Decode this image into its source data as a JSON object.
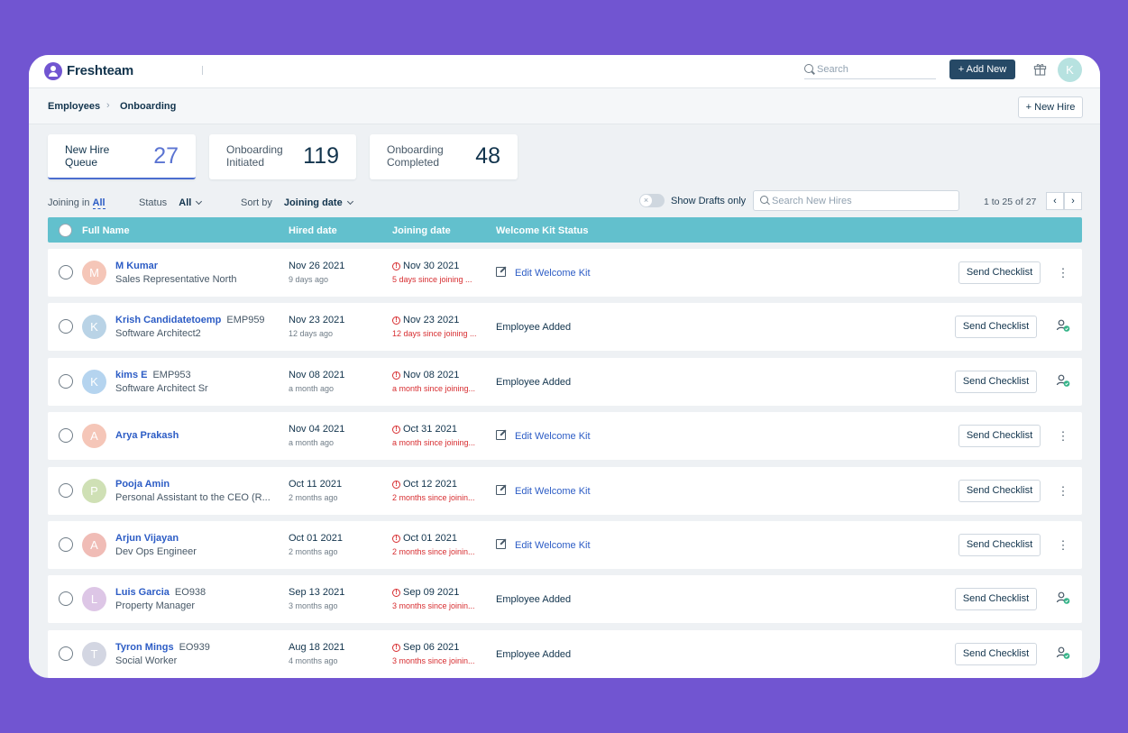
{
  "app": {
    "name": "Freshteam"
  },
  "topbar": {
    "search_placeholder": "Search",
    "add_new_label": "+ Add New",
    "avatar_initial": "K"
  },
  "breadcrumb": {
    "items": [
      "Employees",
      "Onboarding"
    ],
    "separator": "›"
  },
  "new_hire_button": "+ New Hire",
  "stats": [
    {
      "label": "New Hire Queue",
      "value": "27",
      "active": true
    },
    {
      "label": "Onboarding Initiated",
      "value": "119",
      "active": false
    },
    {
      "label": "Onboarding Completed",
      "value": "48",
      "active": false
    }
  ],
  "filters": {
    "joining_in_label": "Joining in",
    "joining_in_value": "All",
    "status_label": "Status",
    "status_value": "All",
    "sort_label": "Sort by",
    "sort_value": "Joining date",
    "drafts_label": "Show Drafts only",
    "drafts_enabled": false,
    "search_placeholder": "Search New Hires",
    "pager_text": "1 to 25 of 27",
    "prev_label": "‹",
    "next_label": "›"
  },
  "table": {
    "headers": [
      "Full Name",
      "Hired date",
      "Joining date",
      "Welcome Kit Status"
    ],
    "send_checklist_label": "Send Checklist",
    "edit_kit_label": "Edit Welcome Kit",
    "rows": [
      {
        "initial": "M",
        "avatar_color": "#f5c6b8",
        "name": "M Kumar",
        "emp_id": "",
        "role": "Sales Representative North",
        "hired": "Nov 26 2021",
        "hired_ago": "9 days ago",
        "joining": "Nov 30 2021",
        "joining_since": "5 days since joining ...",
        "kit": "edit",
        "kit_status": "",
        "action": "dots"
      },
      {
        "initial": "K",
        "avatar_color": "#b9d3e6",
        "name": "Krish Candidatetoemp",
        "emp_id": "EMP959",
        "role": "Software Architect2",
        "hired": "Nov 23 2021",
        "hired_ago": "12 days ago",
        "joining": "Nov 23 2021",
        "joining_since": "12 days since joining ...",
        "kit": "status",
        "kit_status": "Employee Added",
        "action": "person-check"
      },
      {
        "initial": "K",
        "avatar_color": "#b5d4ef",
        "name": "kims E",
        "emp_id": "EMP953",
        "role": "Software Architect Sr",
        "hired": "Nov 08 2021",
        "hired_ago": "a month ago",
        "joining": "Nov 08 2021",
        "joining_since": "a month since joining...",
        "kit": "status",
        "kit_status": "Employee Added",
        "action": "person-check"
      },
      {
        "initial": "A",
        "avatar_color": "#f5c6b8",
        "name": "Arya Prakash",
        "emp_id": "",
        "role": "",
        "hired": "Nov 04 2021",
        "hired_ago": "a month ago",
        "joining": "Oct 31 2021",
        "joining_since": "a month since joining...",
        "kit": "edit",
        "kit_status": "",
        "action": "dots"
      },
      {
        "initial": "P",
        "avatar_color": "#cfe0b5",
        "name": "Pooja Amin",
        "emp_id": "",
        "role": "Personal Assistant to the CEO (R...",
        "hired": "Oct 11 2021",
        "hired_ago": "2 months ago",
        "joining": "Oct 12 2021",
        "joining_since": "2 months since joinin...",
        "kit": "edit",
        "kit_status": "",
        "action": "dots"
      },
      {
        "initial": "A",
        "avatar_color": "#f0bcb6",
        "name": "Arjun Vijayan",
        "emp_id": "",
        "role": "Dev Ops Engineer",
        "hired": "Oct 01 2021",
        "hired_ago": "2 months ago",
        "joining": "Oct 01 2021",
        "joining_since": "2 months since joinin...",
        "kit": "edit",
        "kit_status": "",
        "action": "dots"
      },
      {
        "initial": "L",
        "avatar_color": "#ddc6e6",
        "name": "Luis Garcia",
        "emp_id": "EO938",
        "role": "Property Manager",
        "hired": "Sep 13 2021",
        "hired_ago": "3 months ago",
        "joining": "Sep 09 2021",
        "joining_since": "3 months since joinin...",
        "kit": "status",
        "kit_status": "Employee Added",
        "action": "person-check"
      },
      {
        "initial": "T",
        "avatar_color": "#d3d6e2",
        "name": "Tyron Mings",
        "emp_id": "EO939",
        "role": "Social Worker",
        "hired": "Aug 18 2021",
        "hired_ago": "4 months ago",
        "joining": "Sep 06 2021",
        "joining_since": "3 months since joinin...",
        "kit": "status",
        "kit_status": "Employee Added",
        "action": "person-check"
      }
    ]
  },
  "colors": {
    "background": "#7155d1",
    "table_header": "#62c0cd",
    "link": "#2c5cc5",
    "danger": "#d72d30",
    "add_new_bg": "#264966",
    "active_stat": "#5b74d2"
  }
}
